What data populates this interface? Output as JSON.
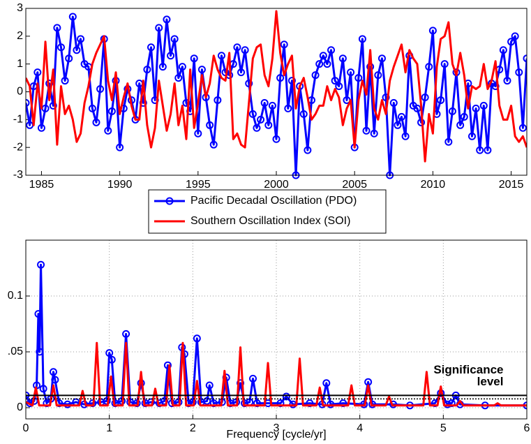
{
  "chart_data": [
    {
      "type": "line",
      "x": [
        1984,
        1984.25,
        1984.5,
        1984.75,
        1985,
        1985.25,
        1985.5,
        1985.75,
        1986,
        1986.25,
        1986.5,
        1986.75,
        1987,
        1987.25,
        1987.5,
        1987.75,
        1988,
        1988.25,
        1988.5,
        1988.75,
        1989,
        1989.25,
        1989.5,
        1989.75,
        1990,
        1990.25,
        1990.5,
        1990.75,
        1991,
        1991.25,
        1991.5,
        1991.75,
        1992,
        1992.25,
        1992.5,
        1992.75,
        1993,
        1993.25,
        1993.5,
        1993.75,
        1994,
        1994.25,
        1994.5,
        1994.75,
        1995,
        1995.25,
        1995.5,
        1995.75,
        1996,
        1996.25,
        1996.5,
        1996.75,
        1997,
        1997.25,
        1997.5,
        1997.75,
        1998,
        1998.25,
        1998.5,
        1998.75,
        1999,
        1999.25,
        1999.5,
        1999.75,
        2000,
        2000.25,
        2000.5,
        2000.75,
        2001,
        2001.25,
        2001.5,
        2001.75,
        2002,
        2002.25,
        2002.5,
        2002.75,
        2003,
        2003.25,
        2003.5,
        2003.75,
        2004,
        2004.25,
        2004.5,
        2004.75,
        2005,
        2005.25,
        2005.5,
        2005.75,
        2006,
        2006.25,
        2006.5,
        2006.75,
        2007,
        2007.25,
        2007.5,
        2007.75,
        2008,
        2008.25,
        2008.5,
        2008.75,
        2009,
        2009.25,
        2009.5,
        2009.75,
        2010,
        2010.25,
        2010.5,
        2010.75,
        2011,
        2011.25,
        2011.5,
        2011.75,
        2012,
        2012.25,
        2012.5,
        2012.75,
        2013,
        2013.25,
        2013.5,
        2013.75,
        2014,
        2014.25,
        2014.5,
        2014.75,
        2015,
        2015.25,
        2015.5,
        2015.75,
        2016
      ],
      "series": [
        {
          "name": "Pacific Decadal Oscillation (PDO)",
          "color": "#0000ff",
          "marker": "circle",
          "values": [
            -0.4,
            -1.2,
            0.2,
            0.7,
            -1.3,
            -0.6,
            0.3,
            -0.5,
            2.3,
            1.6,
            0.4,
            1.2,
            2.7,
            1.5,
            1.9,
            1.0,
            0.9,
            -0.6,
            -1.1,
            0.1,
            1.9,
            -1.4,
            -0.7,
            0.4,
            -2.0,
            -0.6,
            0.1,
            -0.3,
            -1.0,
            0.3,
            -0.4,
            0.8,
            1.6,
            -0.3,
            2.3,
            0.9,
            2.6,
            1.3,
            1.9,
            0.5,
            0.9,
            -0.4,
            -0.7,
            1.2,
            -1.5,
            0.8,
            -0.2,
            -1.2,
            -1.9,
            -0.3,
            1.3,
            0.7,
            0.6,
            1.0,
            1.6,
            0.7,
            1.5,
            0.3,
            -0.8,
            -1.3,
            -1.0,
            -0.4,
            -1.2,
            -0.5,
            -1.7,
            0.5,
            1.7,
            -0.6,
            0.4,
            -3.0,
            0.2,
            -0.8,
            -2.1,
            -0.3,
            0.6,
            1.0,
            1.3,
            1.0,
            1.5,
            0.4,
            0.2,
            1.2,
            -0.3,
            0.7,
            -2.0,
            0.5,
            1.9,
            -1.4,
            0.9,
            -1.5,
            0.6,
            1.2,
            -0.2,
            -3.0,
            -0.4,
            -1.2,
            -0.9,
            -1.6,
            1.3,
            -0.5,
            -0.6,
            -1.1,
            -0.2,
            0.9,
            2.2,
            -0.8,
            -0.3,
            1.0,
            -1.8,
            -0.7,
            0.7,
            -1.2,
            -0.9,
            0.3,
            -1.6,
            -0.6,
            -2.1,
            -0.5,
            -2.1,
            0.3,
            0.2,
            0.8,
            1.5,
            0.4,
            1.8,
            2.0,
            0.7,
            -1.3,
            1.2
          ]
        },
        {
          "name": "Southern Oscillation Index (SOI)",
          "color": "#ff0000",
          "values": [
            0.5,
            0.2,
            -1.2,
            0.3,
            -0.6,
            1.8,
            -0.3,
            0.8,
            -1.9,
            0.2,
            -0.8,
            -0.5,
            -1.0,
            -1.8,
            -1.5,
            -0.4,
            0.2,
            1.0,
            1.4,
            1.7,
            2.0,
            0.4,
            -0.3,
            0.7,
            -0.8,
            -0.2,
            0.3,
            -0.5,
            -1.0,
            -1.0,
            0.4,
            -1.2,
            -2.0,
            -1.3,
            0.4,
            -0.5,
            -1.4,
            -0.8,
            0.3,
            -1.2,
            -0.5,
            -1.7,
            0.8,
            -1.3,
            -0.4,
            0.6,
            -0.2,
            0.3,
            1.3,
            0.8,
            0.5,
            0.4,
            1.4,
            -1.7,
            -1.5,
            -1.9,
            -2.0,
            -0.4,
            1.2,
            1.6,
            1.7,
            0.6,
            0.2,
            1.2,
            2.9,
            1.4,
            0.6,
            1.0,
            1.3,
            -0.6,
            0.2,
            0.5,
            -0.2,
            -1.0,
            -0.8,
            -0.5,
            -0.5,
            0.2,
            -0.3,
            0.1,
            -0.2,
            -1.2,
            -0.6,
            -0.3,
            -2.0,
            -0.3,
            0.4,
            -0.1,
            1.5,
            -0.6,
            -1.0,
            -0.3,
            -0.8,
            0.4,
            0.9,
            1.3,
            1.7,
            0.7,
            1.5,
            1.2,
            1.0,
            -0.5,
            -2.5,
            -0.8,
            -1.5,
            0.9,
            1.9,
            2.0,
            2.5,
            1.0,
            0.6,
            1.4,
            0.6,
            -0.6,
            0.2,
            0.1,
            0.2,
            1.0,
            0.1,
            0.4,
            1.1,
            -0.5,
            -1.0,
            -1.0,
            -0.5,
            -1.6,
            -1.8,
            -1.6,
            -2.0
          ]
        }
      ],
      "xlim": [
        1984,
        2016
      ],
      "xticks": [
        1985,
        1990,
        1995,
        2000,
        2005,
        2010,
        2015
      ],
      "ylim": [
        -3,
        3
      ],
      "yticks": [
        -3,
        -2,
        -1,
        0,
        1,
        2,
        3
      ],
      "grid": false,
      "legend": "below"
    },
    {
      "type": "line",
      "series": [
        {
          "name": "Pacific Decadal Oscillation (PDO)",
          "color": "#0000ff",
          "marker": "circle",
          "x": [
            0,
            0.05,
            0.1,
            0.13,
            0.15,
            0.165,
            0.18,
            0.21,
            0.25,
            0.3,
            0.33,
            0.35,
            0.4,
            0.5,
            0.6,
            0.7,
            0.8,
            0.9,
            0.97,
            1.0,
            1.03,
            1.07,
            1.15,
            1.2,
            1.25,
            1.33,
            1.38,
            1.43,
            1.5,
            1.6,
            1.66,
            1.7,
            1.75,
            1.83,
            1.87,
            1.9,
            1.95,
            2.0,
            2.05,
            2.1,
            2.17,
            2.2,
            2.25,
            2.35,
            2.4,
            2.45,
            2.52,
            2.57,
            2.62,
            2.68,
            2.72,
            2.77,
            2.9,
            3.05,
            3.12,
            3.2,
            3.4,
            3.55,
            3.6,
            3.65,
            3.8,
            4.05,
            4.1,
            4.15,
            4.4,
            4.6,
            4.9,
            4.97,
            5.05,
            5.1,
            5.15,
            5.2,
            5.5,
            6.0
          ],
          "values": [
            0.011,
            0.004,
            0.006,
            0.02,
            0.084,
            0.05,
            0.128,
            0.017,
            0.004,
            0.008,
            0.032,
            0.025,
            0.004,
            0.003,
            0.005,
            0.003,
            0.004,
            0.005,
            0.006,
            0.049,
            0.043,
            0.004,
            0.006,
            0.066,
            0.005,
            0.004,
            0.022,
            0.004,
            0.005,
            0.004,
            0.006,
            0.038,
            0.004,
            0.005,
            0.054,
            0.048,
            0.004,
            0.005,
            0.062,
            0.005,
            0.006,
            0.02,
            0.004,
            0.005,
            0.027,
            0.004,
            0.005,
            0.022,
            0.004,
            0.005,
            0.026,
            0.004,
            0.004,
            0.004,
            0.01,
            0.003,
            0.004,
            0.003,
            0.022,
            0.003,
            0.004,
            0.003,
            0.023,
            0.003,
            0.003,
            0.002,
            0.004,
            0.013,
            0.003,
            0.004,
            0.011,
            0.003,
            0.002,
            0.002
          ]
        },
        {
          "name": "Southern Oscillation Index (SOI)",
          "color": "#ff0000",
          "x": [
            0,
            0.08,
            0.12,
            0.16,
            0.29,
            0.33,
            0.37,
            0.64,
            0.68,
            0.72,
            0.81,
            0.85,
            0.89,
            0.98,
            1.02,
            1.06,
            1.16,
            1.2,
            1.24,
            1.34,
            1.38,
            1.42,
            1.51,
            1.55,
            1.59,
            1.68,
            1.72,
            1.76,
            1.84,
            1.88,
            1.92,
            2.01,
            2.05,
            2.09,
            2.34,
            2.38,
            2.42,
            2.53,
            2.57,
            2.61,
            2.86,
            2.9,
            2.94,
            3.24,
            3.28,
            3.32,
            3.48,
            3.52,
            3.56,
            3.86,
            3.9,
            3.94,
            4.06,
            4.1,
            4.14,
            4.31,
            4.35,
            4.39,
            4.76,
            4.8,
            4.84,
            4.93,
            4.97,
            5.01,
            5.16,
            5.2,
            5.24,
            5.61,
            5.65,
            5.69,
            6.0
          ],
          "values": [
            0.005,
            0.002,
            0.018,
            0.002,
            0.002,
            0.02,
            0.002,
            0.002,
            0.015,
            0.002,
            0.002,
            0.058,
            0.002,
            0.002,
            0.028,
            0.002,
            0.002,
            0.058,
            0.002,
            0.002,
            0.032,
            0.002,
            0.002,
            0.017,
            0.002,
            0.002,
            0.038,
            0.002,
            0.002,
            0.058,
            0.002,
            0.002,
            0.024,
            0.002,
            0.002,
            0.033,
            0.002,
            0.002,
            0.054,
            0.002,
            0.002,
            0.04,
            0.002,
            0.002,
            0.044,
            0.002,
            0.002,
            0.018,
            0.002,
            0.002,
            0.02,
            0.002,
            0.002,
            0.02,
            0.002,
            0.002,
            0.01,
            0.002,
            0.002,
            0.032,
            0.002,
            0.002,
            0.019,
            0.002,
            0.002,
            0.006,
            0.002,
            0.002,
            0.004,
            0.002,
            0.002
          ]
        }
      ],
      "xlabel": "Frequency [cycle/yr]",
      "xlim": [
        0,
        6
      ],
      "xticks": [
        0,
        1,
        2,
        3,
        4,
        5,
        6
      ],
      "ylim": [
        -0.01,
        0.15
      ],
      "yticks": [
        0,
        {
          "value": 0.05,
          "label": ".05"
        },
        {
          "value": 0.1,
          "label": "0.1"
        }
      ],
      "grid": true,
      "significance": {
        "value": 0.011,
        "label": [
          "Significance",
          "level"
        ],
        "color": "#000000"
      }
    }
  ]
}
